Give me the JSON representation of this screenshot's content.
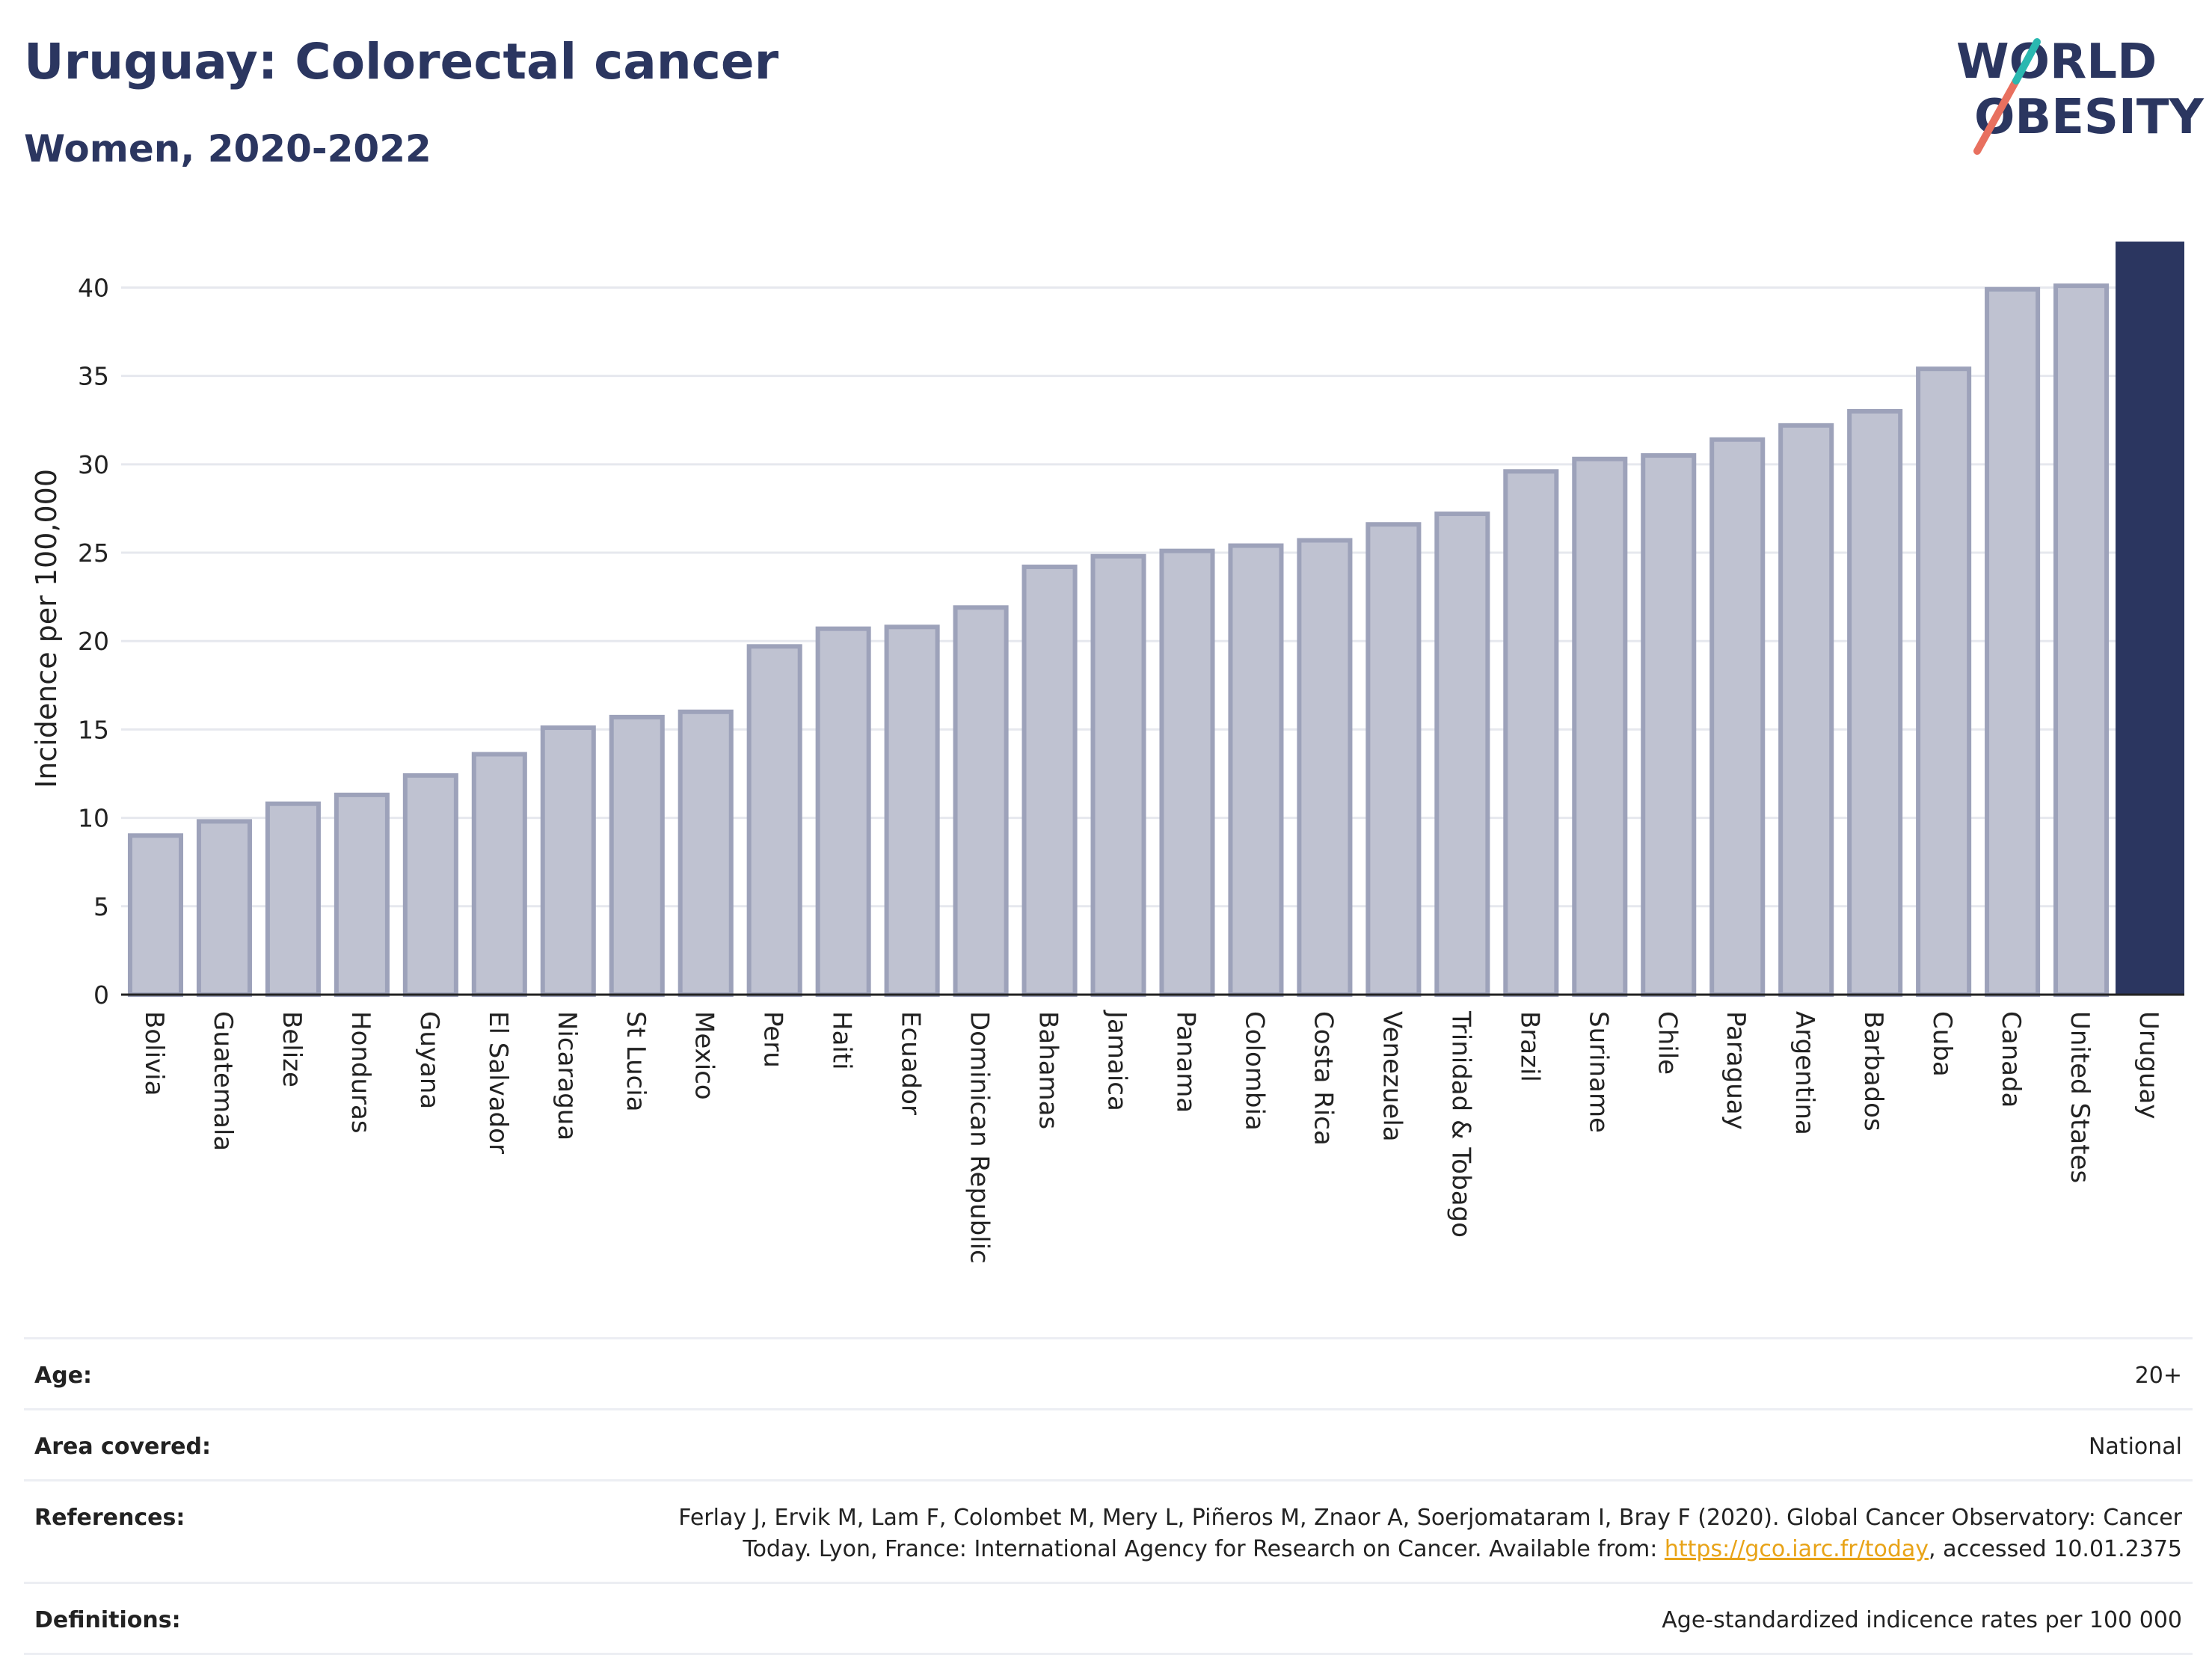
{
  "header": {
    "title": "Uruguay: Colorectal cancer",
    "subtitle": "Women, 2020-2022"
  },
  "logo": {
    "line1": "WORLD",
    "line2": "OBESITY",
    "colors": [
      "#2b3660",
      "#e8705f",
      "#2ab8b0"
    ]
  },
  "chart_data": {
    "type": "bar",
    "ylabel": "Incidence per 100,000",
    "ylim": [
      0,
      42.6
    ],
    "yticks": [
      0,
      5,
      10,
      15,
      20,
      25,
      30,
      35,
      40
    ],
    "grid": true,
    "highlight": "Uruguay",
    "colors": {
      "bar_fill": "#bfc2d1",
      "bar_stroke": "#9da2ba",
      "highlight_fill": "#2b3660",
      "grid": "#e6e8ee",
      "axis": "#222222"
    },
    "categories": [
      "Bolivia",
      "Guatemala",
      "Belize",
      "Honduras",
      "Guyana",
      "El Salvador",
      "Nicaragua",
      "St Lucia",
      "Mexico",
      "Peru",
      "Haiti",
      "Ecuador",
      "Dominican Republic",
      "Bahamas",
      "Jamaica",
      "Panama",
      "Colombia",
      "Costa Rica",
      "Venezuela",
      "Trinidad & Tobago",
      "Brazil",
      "Suriname",
      "Chile",
      "Paraguay",
      "Argentina",
      "Barbados",
      "Cuba",
      "Canada",
      "United States",
      "Uruguay"
    ],
    "values": [
      9.0,
      9.8,
      10.8,
      11.3,
      12.4,
      13.6,
      15.1,
      15.7,
      16.0,
      19.7,
      20.7,
      20.8,
      21.9,
      24.2,
      24.8,
      25.1,
      25.4,
      25.7,
      26.6,
      27.2,
      29.6,
      30.3,
      30.5,
      31.4,
      32.2,
      33.0,
      35.4,
      39.9,
      40.1,
      42.6
    ]
  },
  "info": {
    "age": {
      "label": "Age:",
      "value": "20+"
    },
    "area": {
      "label": "Area covered:",
      "value": "National"
    },
    "references": {
      "label": "References:",
      "text_before": "Ferlay J, Ervik M, Lam F, Colombet M, Mery L, Piñeros M, Znaor A, Soerjomataram I, Bray F (2020). Global Cancer Observatory: Cancer Today. Lyon, France: International Agency for Research on Cancer. Available from: ",
      "link": "https://gco.iarc.fr/today",
      "text_after": ", accessed 10.01.2375"
    },
    "definitions": {
      "label": "Definitions:",
      "value": "Age-standardized indicence rates per 100 000"
    }
  }
}
